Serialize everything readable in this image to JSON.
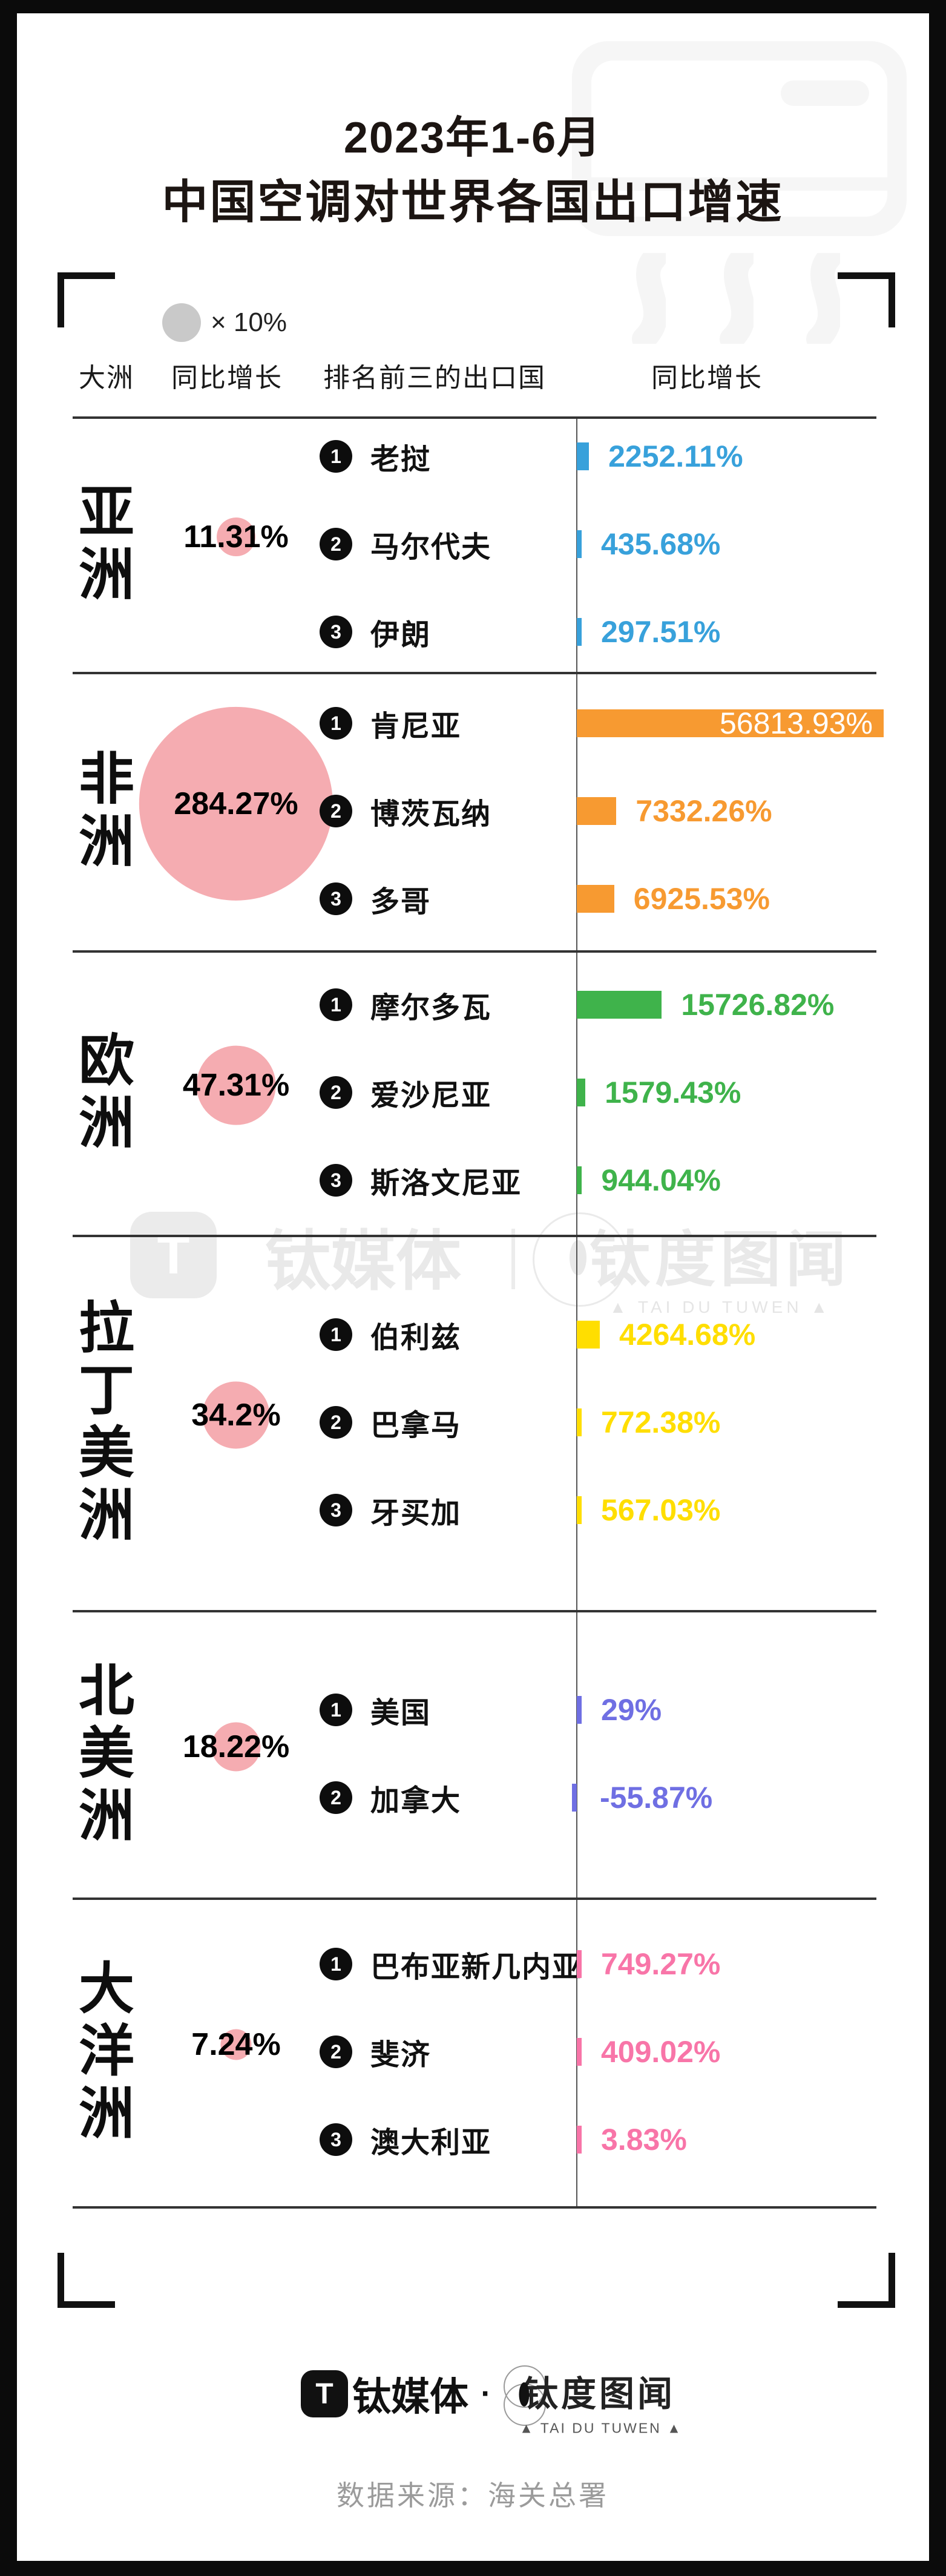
{
  "title": {
    "line1": "2023年1-6月",
    "line2": "中国空调对世界各国出口增速"
  },
  "legend": {
    "circle_label": "× 10%"
  },
  "columns": {
    "continent": "大洲",
    "growth": "同比增长",
    "top3": "排名前三的出口国",
    "growth_right": "同比增长"
  },
  "watermark": {
    "logo_glyph": "T",
    "brand1": "钛媒体",
    "brand2": "钛度图闻",
    "caption": "▲ TAI DU TUWEN ▲"
  },
  "footer": {
    "logo_glyph": "T",
    "brand1": "钛媒体",
    "separator": "·",
    "brand2": "钛度图闻",
    "caption": "▲ TAI DU TUWEN ▲",
    "source": "数据来源：海关总署"
  },
  "chart_data": {
    "type": "bar",
    "orientation": "horizontal",
    "title": "2023年1-6月 中国空调对世界各国出口增速",
    "legend_note": "circle × 10%",
    "unit": "%",
    "rows": [
      {
        "continent": "亚洲",
        "growth_label": "11.31%",
        "growth_value": 11.31,
        "color": "#38A1DB",
        "entries": [
          {
            "rank": "1",
            "country": "老挝",
            "value": 2252.11,
            "label": "2252.11%"
          },
          {
            "rank": "2",
            "country": "马尔代夫",
            "value": 435.68,
            "label": "435.68%"
          },
          {
            "rank": "3",
            "country": "伊朗",
            "value": 297.51,
            "label": "297.51%"
          }
        ]
      },
      {
        "continent": "非洲",
        "growth_label": "284.27%",
        "growth_value": 284.27,
        "color": "#F79A31",
        "entries": [
          {
            "rank": "1",
            "country": "肯尼亚",
            "value": 56813.93,
            "label": "56813.93%"
          },
          {
            "rank": "2",
            "country": "博茨瓦纳",
            "value": 7332.26,
            "label": "7332.26%"
          },
          {
            "rank": "3",
            "country": "多哥",
            "value": 6925.53,
            "label": "6925.53%"
          }
        ]
      },
      {
        "continent": "欧洲",
        "growth_label": "47.31%",
        "growth_value": 47.31,
        "color": "#3FB34B",
        "entries": [
          {
            "rank": "1",
            "country": "摩尔多瓦",
            "value": 15726.82,
            "label": "15726.82%"
          },
          {
            "rank": "2",
            "country": "爱沙尼亚",
            "value": 1579.43,
            "label": "1579.43%"
          },
          {
            "rank": "3",
            "country": "斯洛文尼亚",
            "value": 944.04,
            "label": "944.04%"
          }
        ]
      },
      {
        "continent": "拉丁美洲",
        "growth_label": "34.2%",
        "growth_value": 34.2,
        "color": "#FFDE00",
        "entries": [
          {
            "rank": "1",
            "country": "伯利兹",
            "value": 4264.68,
            "label": "4264.68%"
          },
          {
            "rank": "2",
            "country": "巴拿马",
            "value": 772.38,
            "label": "772.38%"
          },
          {
            "rank": "3",
            "country": "牙买加",
            "value": 567.03,
            "label": "567.03%"
          }
        ]
      },
      {
        "continent": "北美洲",
        "growth_label": "18.22%",
        "growth_value": 18.22,
        "color": "#6F6FE3",
        "entries": [
          {
            "rank": "1",
            "country": "美国",
            "value": 29,
            "label": "29%"
          },
          {
            "rank": "2",
            "country": "加拿大",
            "value": -55.87,
            "label": "-55.87%"
          }
        ]
      },
      {
        "continent": "大洋洲",
        "growth_label": "7.24%",
        "growth_value": 7.24,
        "color": "#F875A8",
        "entries": [
          {
            "rank": "1",
            "country": "巴布亚新几内亚",
            "value": 749.27,
            "label": "749.27%"
          },
          {
            "rank": "2",
            "country": "斐济",
            "value": 409.02,
            "label": "409.02%"
          },
          {
            "rank": "3",
            "country": "澳大利亚",
            "value": 3.83,
            "label": "3.83%"
          }
        ]
      }
    ]
  }
}
